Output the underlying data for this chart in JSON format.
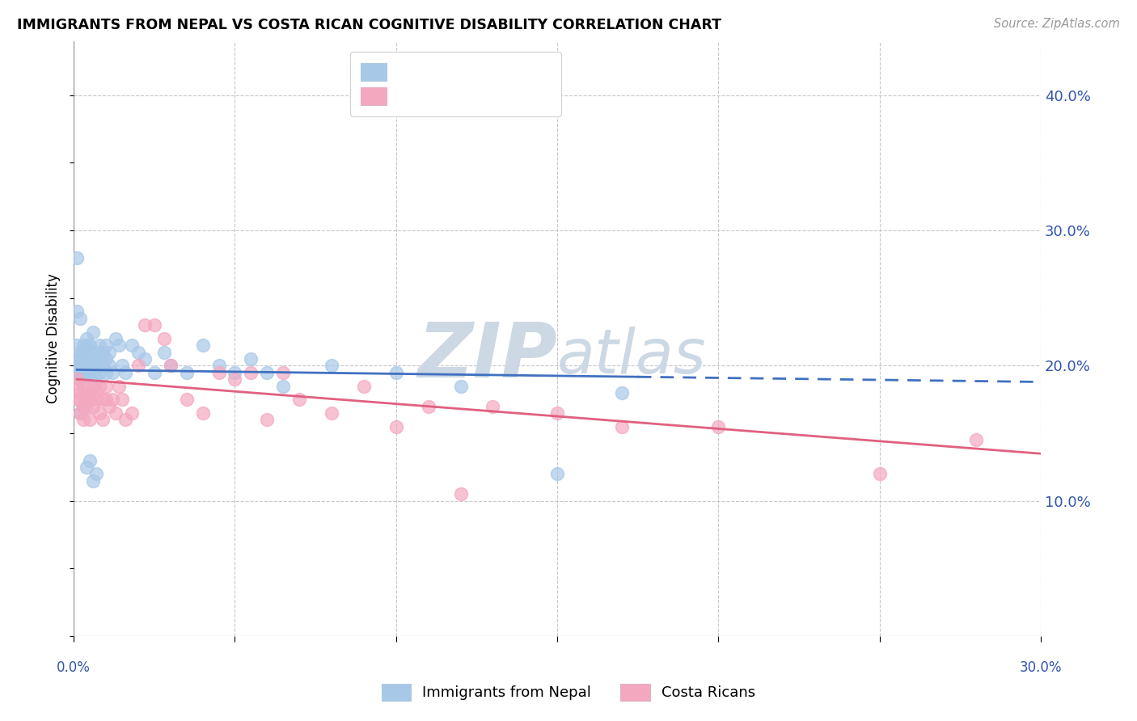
{
  "title": "IMMIGRANTS FROM NEPAL VS COSTA RICAN COGNITIVE DISABILITY CORRELATION CHART",
  "source": "Source: ZipAtlas.com",
  "xlabel_label": "Immigrants from Nepal",
  "ylabel_label": "Cognitive Disability",
  "xlim": [
    0.0,
    0.3
  ],
  "ylim": [
    0.0,
    0.44
  ],
  "blue_color": "#a8c8e8",
  "pink_color": "#f4a8c0",
  "trendline_blue_color": "#4070c0",
  "trendline_pink_color": "#e06080",
  "legend_text_color": "#3355aa",
  "legend_label_color": "#222222",
  "watermark_zip": "ZIP",
  "watermark_atlas": "atlas",
  "watermark_color": "#ccd8e4",
  "figsize": [
    14.06,
    8.92
  ],
  "dpi": 100,
  "blue_scatter_x": [
    0.001,
    0.001,
    0.001,
    0.001,
    0.002,
    0.002,
    0.002,
    0.002,
    0.002,
    0.003,
    0.003,
    0.003,
    0.003,
    0.003,
    0.003,
    0.004,
    0.004,
    0.004,
    0.004,
    0.004,
    0.005,
    0.005,
    0.005,
    0.005,
    0.006,
    0.006,
    0.006,
    0.007,
    0.007,
    0.007,
    0.008,
    0.008,
    0.008,
    0.009,
    0.009,
    0.01,
    0.01,
    0.01,
    0.011,
    0.011,
    0.012,
    0.013,
    0.014,
    0.015,
    0.016,
    0.018,
    0.02,
    0.022,
    0.025,
    0.028,
    0.03,
    0.035,
    0.04,
    0.045,
    0.05,
    0.055,
    0.06,
    0.065,
    0.08,
    0.1,
    0.12,
    0.15,
    0.17,
    0.001,
    0.001,
    0.002,
    0.002,
    0.003,
    0.004,
    0.004,
    0.005,
    0.006,
    0.007
  ],
  "blue_scatter_y": [
    0.2,
    0.205,
    0.195,
    0.215,
    0.195,
    0.205,
    0.2,
    0.21,
    0.19,
    0.195,
    0.2,
    0.205,
    0.215,
    0.195,
    0.21,
    0.2,
    0.215,
    0.195,
    0.205,
    0.22,
    0.195,
    0.21,
    0.2,
    0.215,
    0.205,
    0.195,
    0.225,
    0.21,
    0.2,
    0.19,
    0.205,
    0.215,
    0.195,
    0.21,
    0.2,
    0.215,
    0.205,
    0.195,
    0.21,
    0.2,
    0.195,
    0.22,
    0.215,
    0.2,
    0.195,
    0.215,
    0.21,
    0.205,
    0.195,
    0.21,
    0.2,
    0.195,
    0.215,
    0.2,
    0.195,
    0.205,
    0.195,
    0.185,
    0.2,
    0.195,
    0.185,
    0.12,
    0.18,
    0.24,
    0.28,
    0.235,
    0.165,
    0.17,
    0.175,
    0.125,
    0.13,
    0.115,
    0.12
  ],
  "pink_scatter_x": [
    0.001,
    0.001,
    0.001,
    0.002,
    0.002,
    0.002,
    0.003,
    0.003,
    0.003,
    0.004,
    0.004,
    0.004,
    0.005,
    0.005,
    0.005,
    0.006,
    0.006,
    0.007,
    0.007,
    0.008,
    0.008,
    0.009,
    0.009,
    0.01,
    0.01,
    0.011,
    0.012,
    0.013,
    0.014,
    0.015,
    0.016,
    0.018,
    0.02,
    0.022,
    0.025,
    0.028,
    0.03,
    0.035,
    0.04,
    0.045,
    0.05,
    0.055,
    0.06,
    0.065,
    0.07,
    0.08,
    0.09,
    0.1,
    0.11,
    0.12,
    0.13,
    0.15,
    0.17,
    0.2,
    0.25,
    0.28
  ],
  "pink_scatter_y": [
    0.19,
    0.175,
    0.185,
    0.18,
    0.165,
    0.175,
    0.185,
    0.17,
    0.16,
    0.175,
    0.185,
    0.17,
    0.18,
    0.16,
    0.175,
    0.185,
    0.17,
    0.18,
    0.175,
    0.165,
    0.185,
    0.175,
    0.16,
    0.185,
    0.175,
    0.17,
    0.175,
    0.165,
    0.185,
    0.175,
    0.16,
    0.165,
    0.2,
    0.23,
    0.23,
    0.22,
    0.2,
    0.175,
    0.165,
    0.195,
    0.19,
    0.195,
    0.16,
    0.195,
    0.175,
    0.165,
    0.185,
    0.155,
    0.17,
    0.105,
    0.17,
    0.165,
    0.155,
    0.155,
    0.12,
    0.145
  ],
  "trendline_blue_start_x": 0.001,
  "trendline_blue_start_y": 0.197,
  "trendline_blue_end_x": 0.3,
  "trendline_blue_end_y": 0.188,
  "trendline_blue_solid_end_x": 0.175,
  "trendline_pink_start_x": 0.001,
  "trendline_pink_start_y": 0.19,
  "trendline_pink_end_x": 0.3,
  "trendline_pink_end_y": 0.135
}
